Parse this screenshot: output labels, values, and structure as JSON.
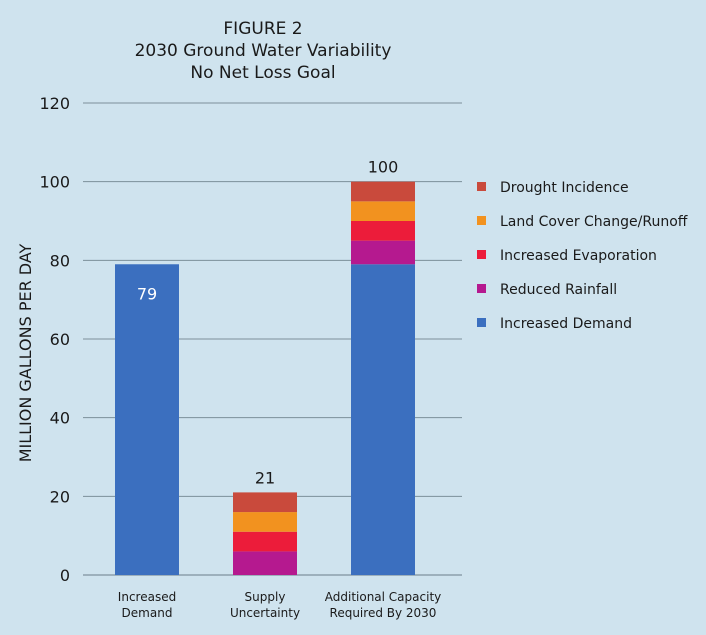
{
  "chart_data": {
    "type": "bar",
    "stacked": true,
    "title": [
      "FIGURE 2",
      "2030 Ground Water Variability",
      "No Net Loss Goal"
    ],
    "ylabel": "MILLION GALLONS PER DAY",
    "xlabel": "",
    "ylim": [
      0,
      120
    ],
    "yticks": [
      0,
      20,
      40,
      60,
      80,
      100,
      120
    ],
    "grid": true,
    "legend_position": "right",
    "categories": [
      [
        "Increased",
        "Demand"
      ],
      [
        "Supply",
        "Uncertainty"
      ],
      [
        "Additional Capacity",
        "Required By 2030"
      ]
    ],
    "series": [
      {
        "name": "Increased Demand",
        "color": "#3b6fbf",
        "values": [
          79,
          0,
          79
        ]
      },
      {
        "name": "Reduced Rainfall",
        "color": "#b5198f",
        "values": [
          0,
          6,
          6
        ]
      },
      {
        "name": "Increased Evaporation",
        "color": "#ec1c3a",
        "values": [
          0,
          5,
          5
        ]
      },
      {
        "name": "Land Cover Change/Runoff",
        "color": "#f2921f",
        "values": [
          0,
          5,
          5
        ]
      },
      {
        "name": "Drought Incidence",
        "color": "#c94a3c",
        "values": [
          0,
          5,
          5
        ]
      }
    ],
    "bar_labels": [
      {
        "category_index": 0,
        "text": "79",
        "placement": "inside"
      },
      {
        "category_index": 1,
        "text": "21",
        "placement": "above"
      },
      {
        "category_index": 2,
        "text": "100",
        "placement": "above"
      }
    ],
    "legend_order": [
      4,
      3,
      2,
      1,
      0
    ]
  }
}
